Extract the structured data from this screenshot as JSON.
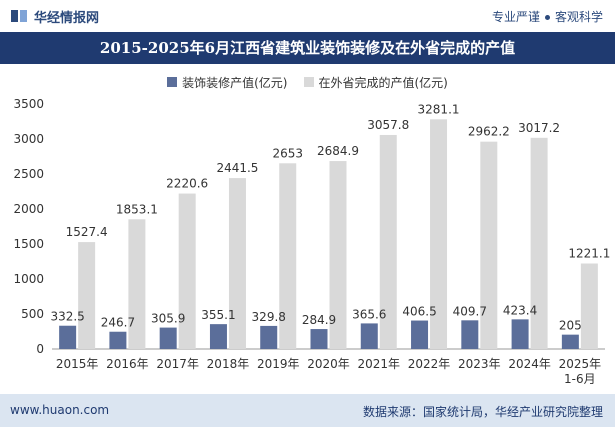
{
  "header": {
    "logo_text": "华经情报网",
    "tagline_left": "专业严谨",
    "tagline_right": "客观科学"
  },
  "footer": {
    "website": "www.huaon.com",
    "source": "数据来源：国家统计局，华经产业研究院整理"
  },
  "colors": {
    "series1": "#5b6e9a",
    "series2": "#d9d9d9",
    "title_bg": "#1f3a70",
    "footer_bg": "#dbe5f1"
  },
  "chart_data": {
    "type": "bar",
    "title": "2015-2025年6月江西省建筑业装饰装修及在外省完成的产值",
    "categories": [
      "2015年",
      "2016年",
      "2017年",
      "2018年",
      "2019年",
      "2020年",
      "2021年",
      "2022年",
      "2023年",
      "2024年",
      "2025年\n1-6月"
    ],
    "series": [
      {
        "name": "装饰装修产值(亿元)",
        "values": [
          332.5,
          246.7,
          305.9,
          355.1,
          329.8,
          284.9,
          365.6,
          406.5,
          409.7,
          423.4,
          205
        ]
      },
      {
        "name": "在外省完成的产值(亿元)",
        "values": [
          1527.4,
          1853.1,
          2220.6,
          2441.5,
          2653,
          2684.9,
          3057.8,
          3281.1,
          2962.2,
          3017.2,
          1221.1
        ]
      }
    ],
    "data_labels": [
      [
        "332.5",
        "246.7",
        "305.9",
        "355.1",
        "329.8",
        "284.9",
        "365.6",
        "406.5",
        "409.7",
        "423.4",
        "205"
      ],
      [
        "1527.4",
        "1853.1",
        "2220.6",
        "2441.5",
        "2653",
        "2684.9",
        "3057.8",
        "3281.1",
        "2962.2",
        "3017.2",
        "1221.1"
      ]
    ],
    "ylim": [
      0,
      3500
    ],
    "yticks": [
      0,
      500,
      1000,
      1500,
      2000,
      2500,
      3000,
      3500
    ],
    "legend_position": "top",
    "grid": false
  }
}
